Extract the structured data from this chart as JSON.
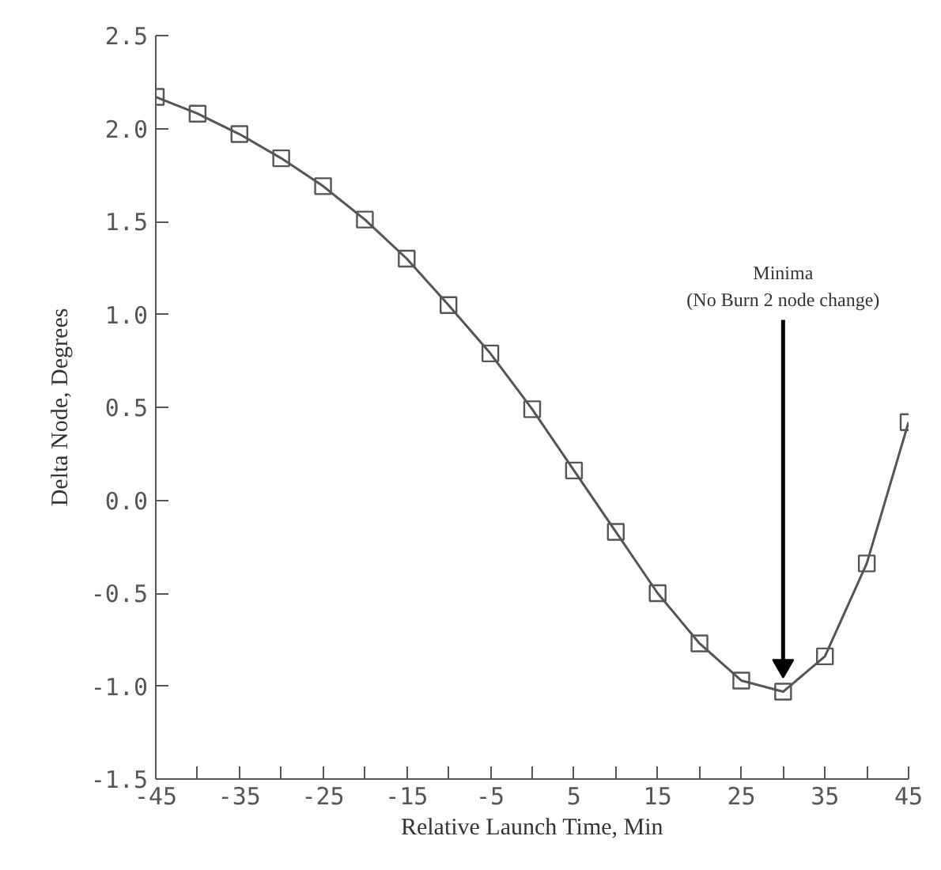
{
  "chart_data": {
    "type": "line",
    "xlabel": "Relative Launch Time, Min",
    "ylabel": "Delta Node, Degrees",
    "x": [
      -45,
      -40,
      -35,
      -30,
      -25,
      -20,
      -15,
      -10,
      -5,
      0,
      5,
      10,
      15,
      20,
      25,
      30,
      35,
      40,
      45
    ],
    "series": [
      {
        "color": "#555555",
        "values": [
          2.17,
          2.08,
          1.97,
          1.84,
          1.69,
          1.51,
          1.3,
          1.05,
          0.79,
          0.49,
          0.16,
          -0.17,
          -0.5,
          -0.77,
          -0.97,
          -1.03,
          -0.84,
          -0.34,
          0.42
        ]
      }
    ],
    "marker": "square",
    "line_style": "solid",
    "grid": false,
    "xlim": [
      -45,
      45
    ],
    "ylim": [
      -1.5,
      2.5
    ],
    "xticks": [
      -45,
      {
        "value": -40,
        "label": null
      },
      -35,
      {
        "value": -30,
        "label": null
      },
      -25,
      {
        "value": -20,
        "label": null
      },
      -15,
      {
        "value": -10,
        "label": null
      },
      -5,
      {
        "value": 0,
        "label": null
      },
      5,
      {
        "value": 10,
        "label": null
      },
      15,
      {
        "value": 20,
        "label": null
      },
      25,
      {
        "value": 30,
        "label": null
      },
      35,
      {
        "value": 40,
        "label": null
      },
      45
    ],
    "yticks": [
      {
        "value": 2.5,
        "label": "2.5"
      },
      {
        "value": 2.0,
        "label": "2.0"
      },
      {
        "value": 1.5,
        "label": "1.5"
      },
      {
        "value": 1.0,
        "label": "1.0"
      },
      {
        "value": 0.5,
        "label": "0.5"
      },
      {
        "value": 0.0,
        "label": "0.0"
      },
      {
        "value": -0.5,
        "label": "-0.5"
      },
      {
        "value": -1.0,
        "label": "-1.0"
      },
      {
        "value": -1.5,
        "label": "-1.5"
      }
    ],
    "annotations": [
      "Minima\n(No Burn 2 node change)"
    ]
  }
}
